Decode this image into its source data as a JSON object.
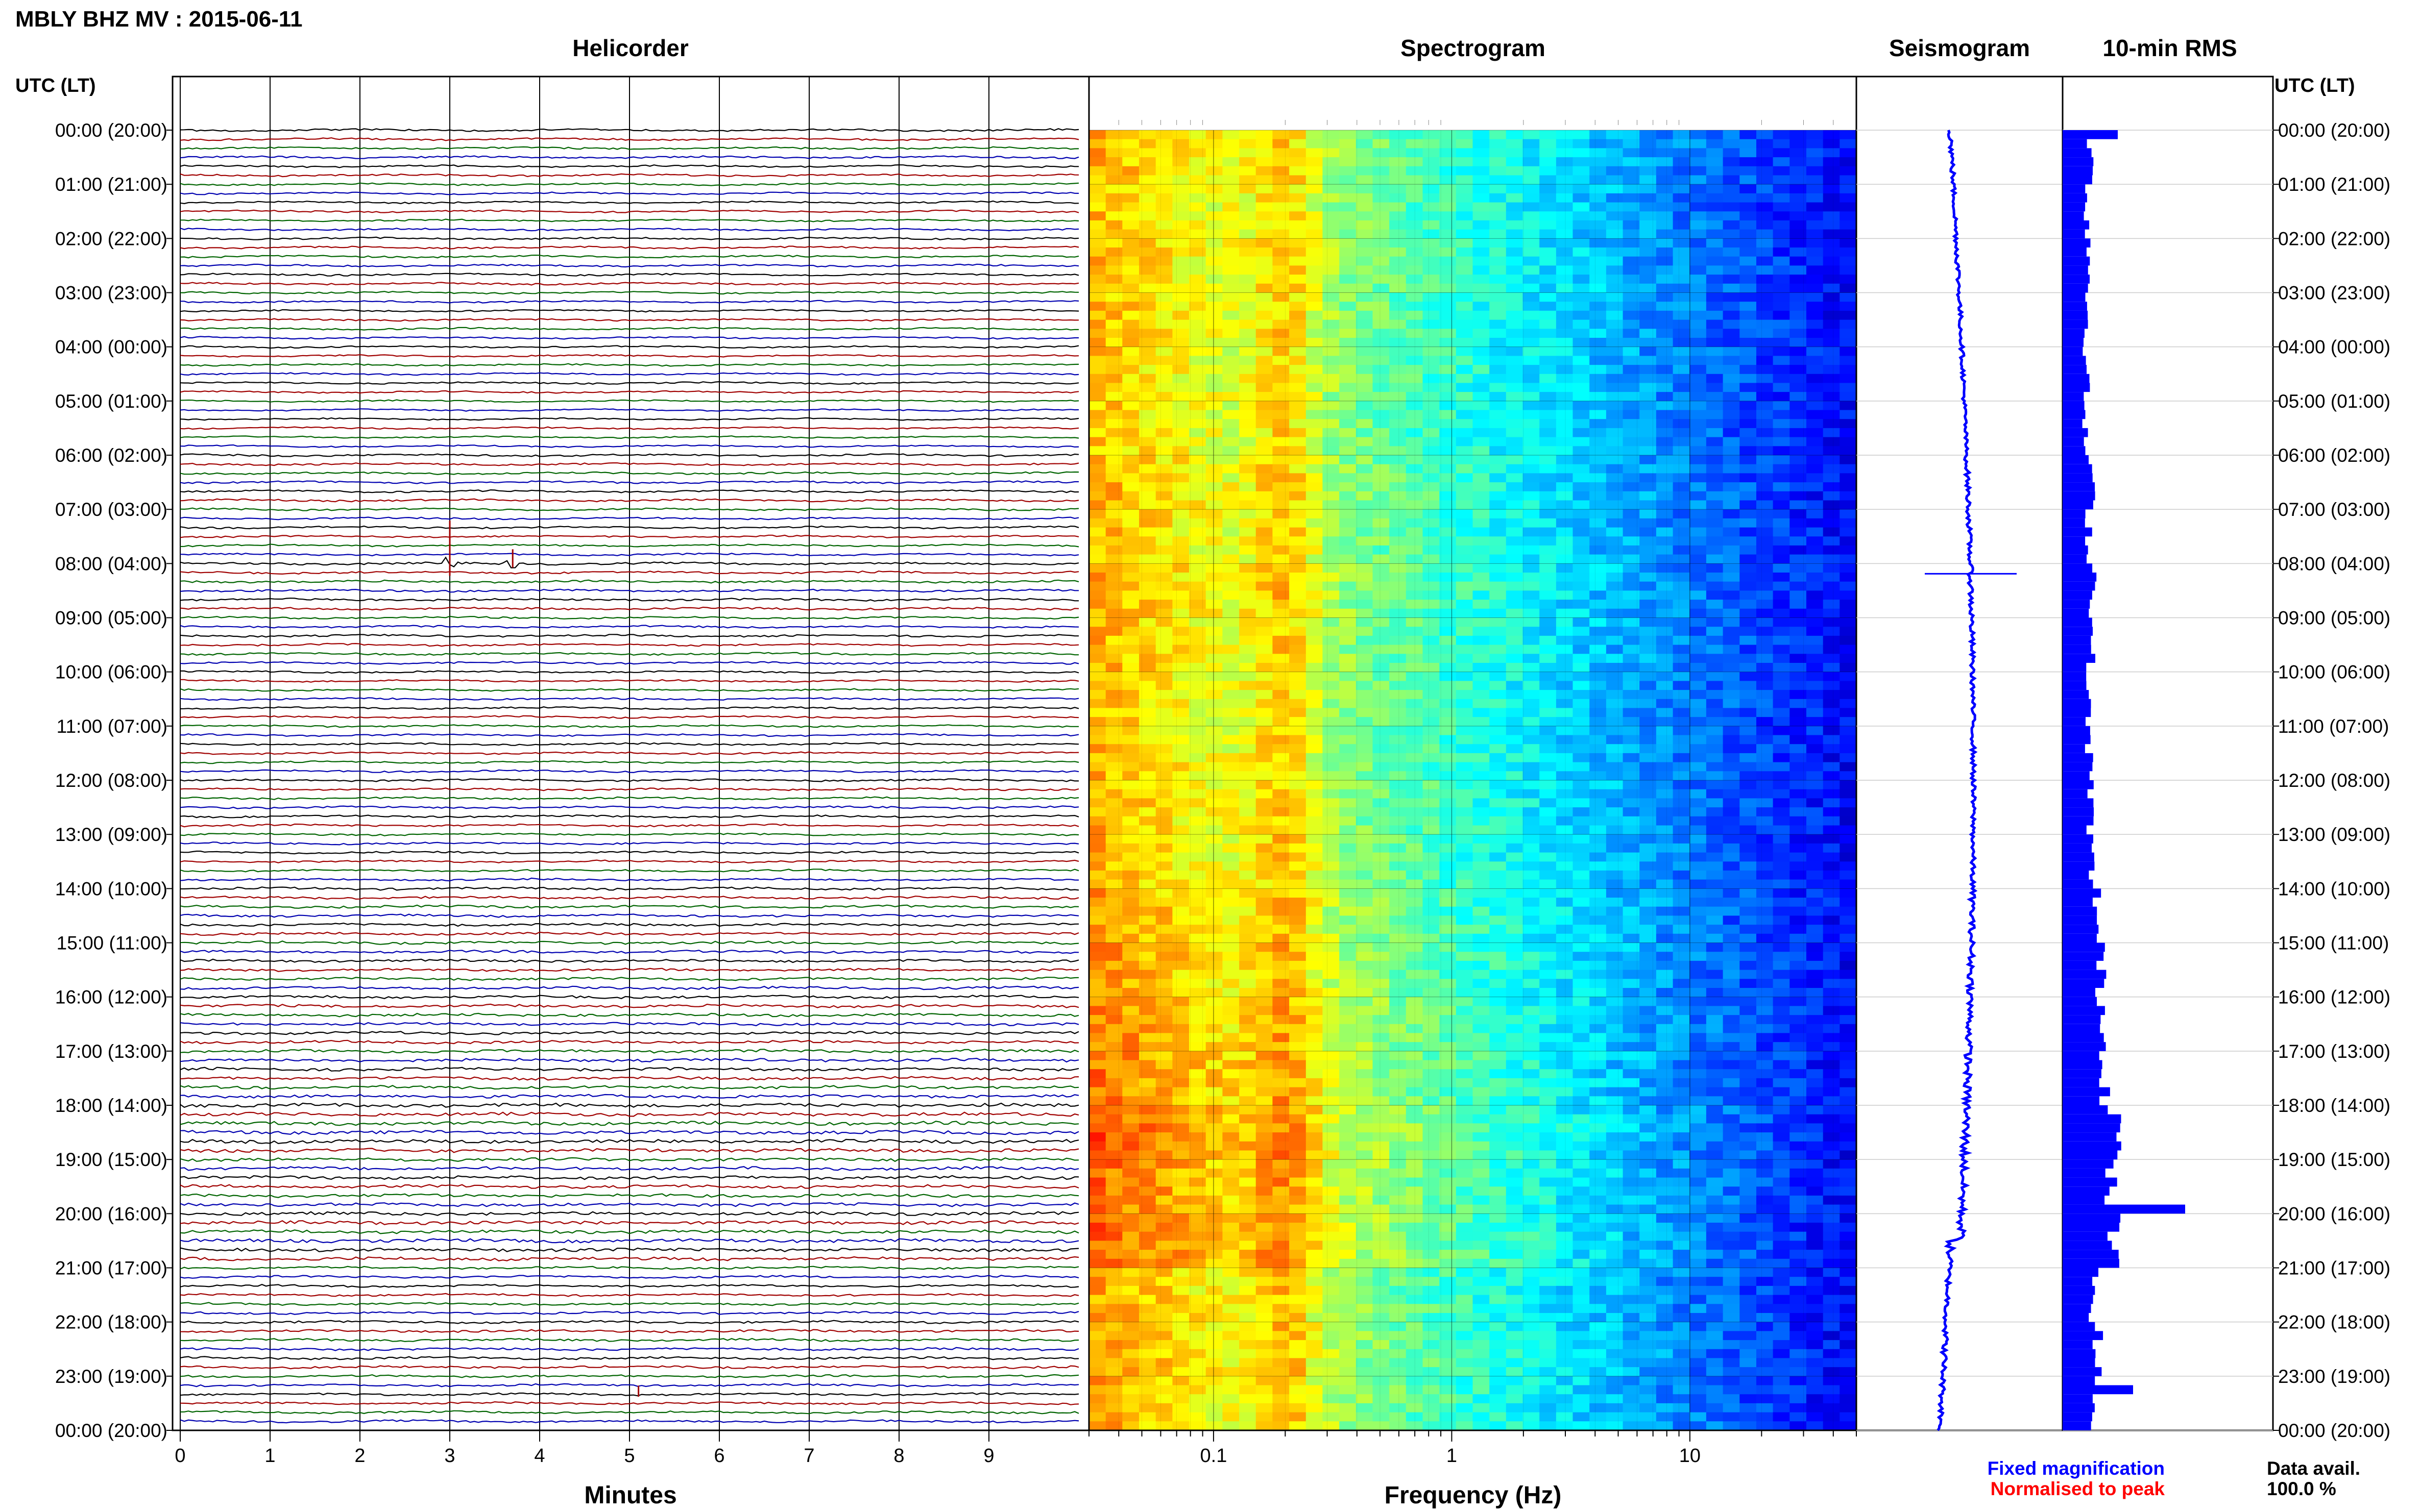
{
  "header": {
    "title": "MBLY BHZ MV : 2015-06-11",
    "left_axis_title": "UTC (LT)",
    "right_axis_title": "UTC (LT)",
    "panel_titles": [
      "Helicorder",
      "Spectrogram",
      "Seismogram",
      "10-min RMS"
    ],
    "xlabel_minutes": "Minutes",
    "xlabel_frequency": "Frequency (Hz)"
  },
  "legend": {
    "fixed": "Fixed magnification",
    "normalised": "Normalised to peak",
    "fixed_color": "#0000ff",
    "normalised_color": "#ff0000"
  },
  "availability": {
    "label": "Data avail.",
    "value": "100.0 %"
  },
  "chart_data": {
    "type": "heatmap",
    "time_labels": [
      "00:00 (20:00)",
      "01:00 (21:00)",
      "02:00 (22:00)",
      "03:00 (23:00)",
      "04:00 (00:00)",
      "05:00 (01:00)",
      "06:00 (02:00)",
      "07:00 (03:00)",
      "08:00 (04:00)",
      "09:00 (05:00)",
      "10:00 (06:00)",
      "11:00 (07:00)",
      "12:00 (08:00)",
      "13:00 (09:00)",
      "14:00 (10:00)",
      "15:00 (11:00)",
      "16:00 (12:00)",
      "17:00 (13:00)",
      "18:00 (14:00)",
      "19:00 (15:00)",
      "20:00 (16:00)",
      "21:00 (17:00)",
      "22:00 (18:00)",
      "23:00 (19:00)",
      "00:00 (20:00)"
    ],
    "helicorder": {
      "minutes_ticks": [
        "0",
        "1",
        "2",
        "3",
        "4",
        "5",
        "6",
        "7",
        "8",
        "9"
      ],
      "xlim": [
        0,
        10
      ],
      "line_colors": [
        "#000000",
        "#a00000",
        "#006400",
        "#0000b0"
      ],
      "events": [
        {
          "time_hour": 8.0,
          "minute": 3.0,
          "amplitude": 3.0
        },
        {
          "time_hour": 8.0,
          "minute": 3.7,
          "amplitude": 1.0
        },
        {
          "time_hour": 23.3,
          "minute": 5.1,
          "amplitude": 0.6
        }
      ]
    },
    "spectrogram": {
      "xscale": "log",
      "xlim": [
        0.03,
        50
      ],
      "xtick_labels": [
        "0.1",
        "1",
        "10"
      ],
      "xtick_values": [
        0.1,
        1,
        10
      ],
      "colormap": "jet (blue = low, yellow = high)",
      "microseism_peak_hz": 0.2
    },
    "seismogram": {
      "trace_color": "#0000ff",
      "notable_event_hour": 8.0
    },
    "rms": {
      "bar_color": "#0000ff",
      "bin_minutes": 10,
      "hourly_mean_relative": [
        0.9,
        0.8,
        0.85,
        0.8,
        0.75,
        0.7,
        0.9,
        0.85,
        1.0,
        0.9,
        0.8,
        0.85,
        0.9,
        0.9,
        1.1,
        1.2,
        1.3,
        1.4,
        1.7,
        1.5,
        1.6,
        1.0,
        1.1,
        1.0
      ],
      "peak_events": [
        {
          "time_hour": 0.0,
          "value": 1.8
        },
        {
          "time_hour": 19.9,
          "value": 4.0
        },
        {
          "time_hour": 23.2,
          "value": 2.3
        }
      ]
    }
  }
}
